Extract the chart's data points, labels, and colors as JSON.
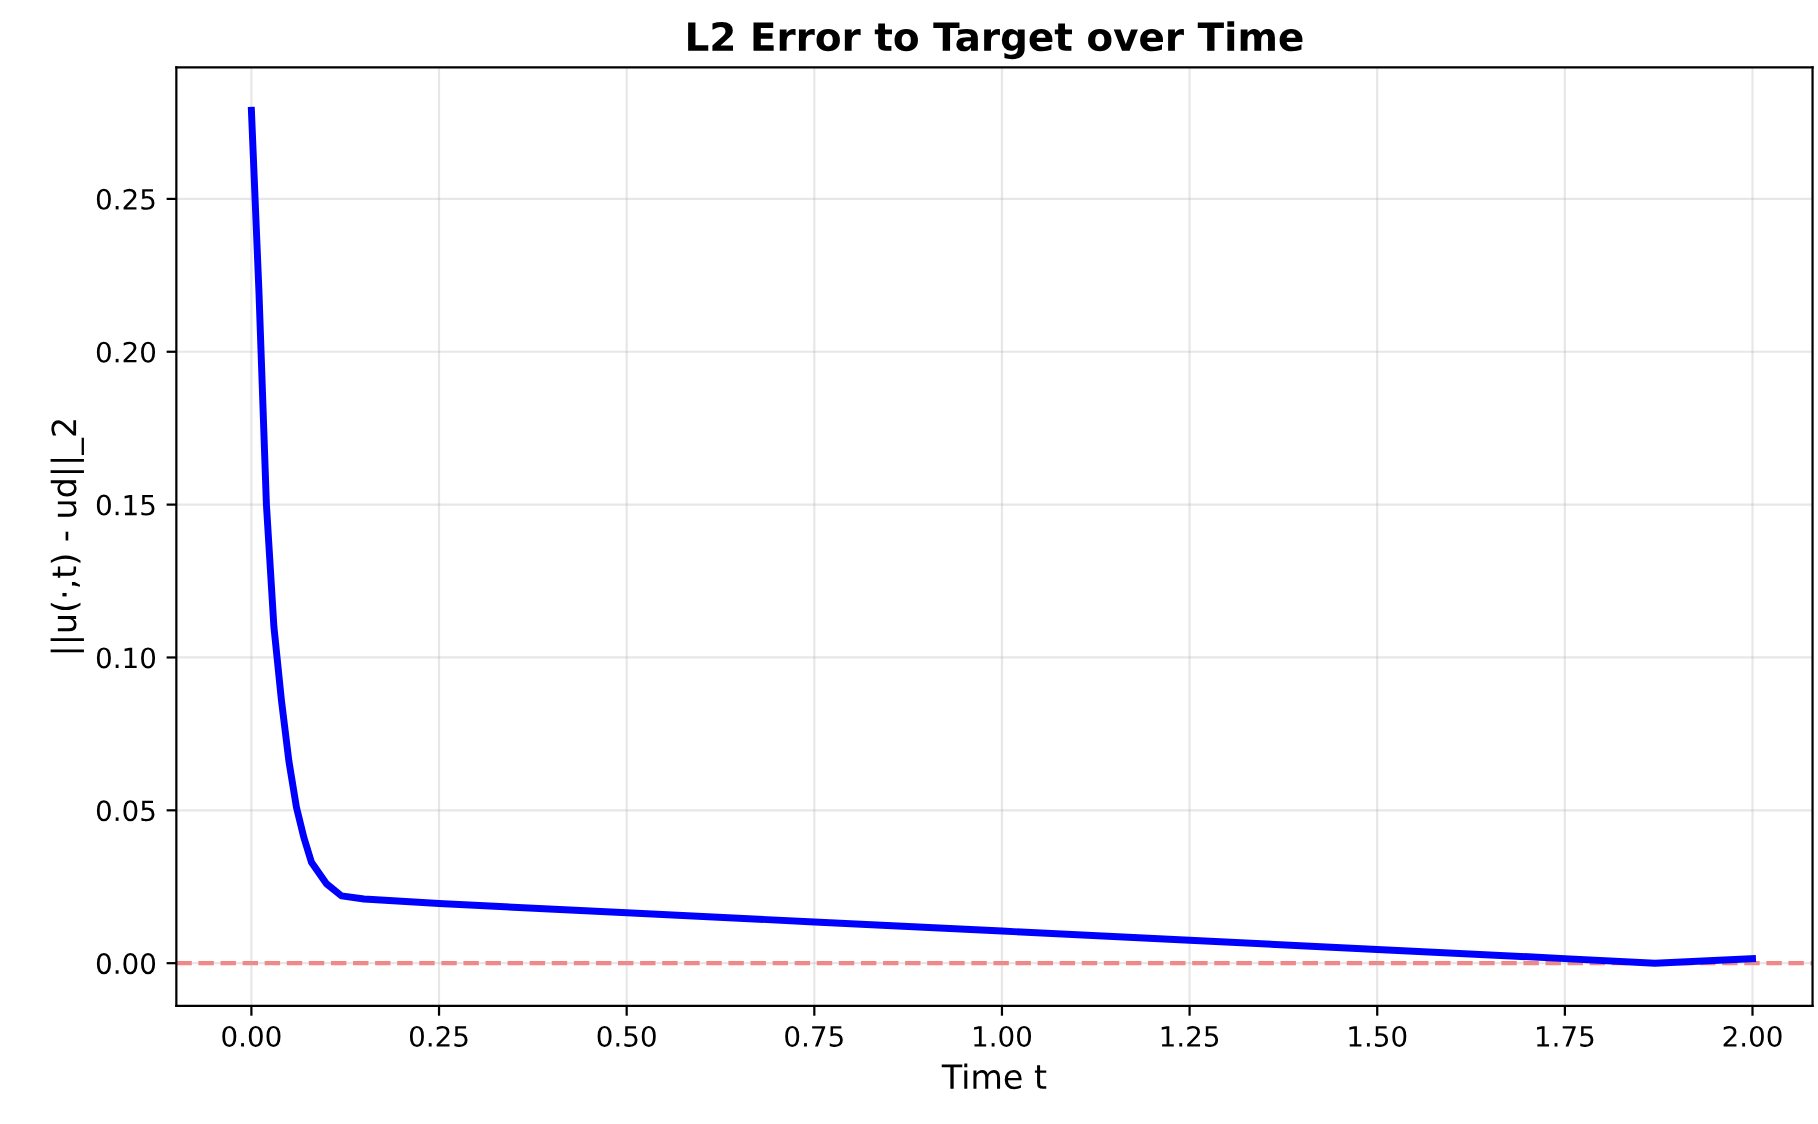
{
  "chart_data": {
    "type": "line",
    "title": "L2 Error to Target over Time",
    "xlabel": "Time t",
    "ylabel": "||u(·,t) - ud||_2",
    "series": [
      {
        "color": "#0000ff",
        "x": [
          0,
          0.01,
          0.02,
          0.03,
          0.04,
          0.05,
          0.06,
          0.07,
          0.08,
          0.1,
          0.12,
          0.15,
          0.25,
          0.5,
          0.75,
          1.0,
          1.25,
          1.5,
          1.75,
          1.87,
          2.0
        ],
        "values": [
          0.279,
          0.22,
          0.15,
          0.11,
          0.086,
          0.066,
          0.051,
          0.041,
          0.033,
          0.026,
          0.022,
          0.021,
          0.0195,
          0.0165,
          0.0135,
          0.0105,
          0.0075,
          0.0045,
          0.0015,
          0.0,
          0.0015
        ]
      }
    ],
    "xlim": [
      -0.1,
      2.08
    ],
    "xticks": [
      {
        "value": 0,
        "label": "0.00"
      },
      {
        "value": 0.25,
        "label": "0.25"
      },
      {
        "value": 0.5,
        "label": "0.50"
      },
      {
        "value": 0.75,
        "label": "0.75"
      },
      {
        "value": 1,
        "label": "1.00"
      },
      {
        "value": 1.25,
        "label": "1.25"
      },
      {
        "value": 1.5,
        "label": "1.50"
      },
      {
        "value": 1.75,
        "label": "1.75"
      },
      {
        "value": 2,
        "label": "2.00"
      }
    ],
    "ylim": [
      -0.014,
      0.293
    ],
    "yticks": [
      {
        "value": 0,
        "label": "0.00"
      },
      {
        "value": 0.05,
        "label": "0.05"
      },
      {
        "value": 0.1,
        "label": "0.10"
      },
      {
        "value": 0.15,
        "label": "0.15"
      },
      {
        "value": 0.2,
        "label": "0.20"
      },
      {
        "value": 0.25,
        "label": "0.25"
      }
    ],
    "grid": true,
    "line_style": "solid",
    "ref_lines": [
      {
        "axis": "y",
        "value": 0,
        "color": "#ff7f7f",
        "line_style": "dashed"
      }
    ]
  }
}
